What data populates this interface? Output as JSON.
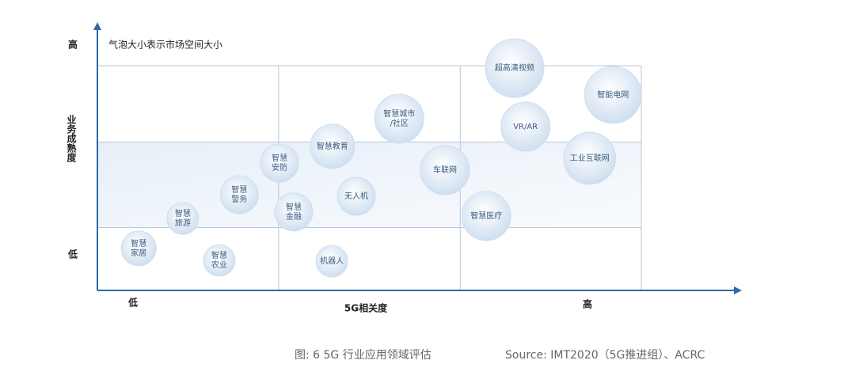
{
  "chart_data": {
    "type": "bubble",
    "note": "气泡大小表示市场空间大小",
    "x_label": "5G相关度",
    "y_label": "业务成熟度",
    "x_low": "低",
    "x_high": "高",
    "y_low": "低",
    "y_high": "高",
    "xlim": [
      0,
      100
    ],
    "ylim": [
      0,
      100
    ],
    "xgrid": [
      33.3,
      66.7,
      100
    ],
    "ygrid": [
      28,
      66,
      100
    ],
    "color": "#cfdff0",
    "labels": [
      [
        "超高清视频"
      ],
      [
        "智能电网"
      ],
      [
        "VR/AR"
      ],
      [
        "工业互联网"
      ],
      [
        "智慧城市",
        "/社区"
      ],
      [
        "车联网"
      ],
      [
        "智慧医疗"
      ],
      [
        "智慧教育"
      ],
      [
        "智慧",
        "安防"
      ],
      [
        "无人机"
      ],
      [
        "智慧",
        "警务"
      ],
      [
        "智慧",
        "金融"
      ],
      [
        "智慧",
        "旅游"
      ],
      [
        "智慧",
        "家居"
      ],
      [
        "智慧",
        "农业"
      ],
      [
        "机器人"
      ]
    ],
    "x": [
      76.7,
      94.8,
      78.7,
      90.5,
      55.5,
      63.9,
      71.5,
      43.2,
      33.5,
      47.6,
      26.1,
      36.1,
      15.7,
      7.6,
      22.4,
      43.1
    ],
    "values": [
      98.9,
      87,
      72.9,
      58.8,
      76.4,
      53.5,
      33.1,
      64.1,
      56.7,
      41.9,
      42.6,
      34.9,
      32,
      18.7,
      13.4,
      13
    ],
    "sizes": [
      37,
      36,
      31,
      33,
      31,
      31,
      31,
      28,
      24,
      24,
      24,
      24,
      20,
      22,
      20,
      20
    ]
  },
  "caption": {
    "figure": "图: 6  5G 行业应用领域评估",
    "source": "Source: IMT2020（5G推进组）、ACRC"
  }
}
